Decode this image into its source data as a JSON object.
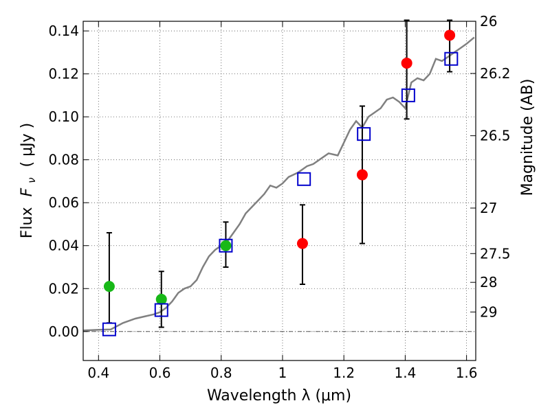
{
  "chart_data": {
    "type": "scatter",
    "xlabel": "Wavelength  λ (μm)",
    "ylabel_text": "Flux",
    "ylabel_math": "F",
    "ylabel_sub": "ν",
    "ylabel_unit": "( μJy )",
    "y2label": "Magnitude (AB)",
    "xlim": [
      0.35,
      1.63
    ],
    "ylim": [
      -0.0135,
      0.1445
    ],
    "grid": true,
    "x_ticks": [
      {
        "value": 0.4,
        "label": "0.4"
      },
      {
        "value": 0.6,
        "label": "0.6"
      },
      {
        "value": 0.8,
        "label": "0.8"
      },
      {
        "value": 1.0,
        "label": "1"
      },
      {
        "value": 1.2,
        "label": "1.2"
      },
      {
        "value": 1.4,
        "label": "1.4"
      },
      {
        "value": 1.6,
        "label": "1.6"
      }
    ],
    "y_ticks": [
      {
        "value": 0.0,
        "label": "0.00"
      },
      {
        "value": 0.02,
        "label": "0.02"
      },
      {
        "value": 0.04,
        "label": "0.04"
      },
      {
        "value": 0.06,
        "label": "0.06"
      },
      {
        "value": 0.08,
        "label": "0.08"
      },
      {
        "value": 0.1,
        "label": "0.10"
      },
      {
        "value": 0.12,
        "label": "0.12"
      },
      {
        "value": 0.14,
        "label": "0.14"
      }
    ],
    "y2_ticks": [
      {
        "flux": 0.1445,
        "label": "26"
      },
      {
        "flux": 0.1202,
        "label": "26.2"
      },
      {
        "flux": 0.0912,
        "label": "26.5"
      },
      {
        "flux": 0.0575,
        "label": "27"
      },
      {
        "flux": 0.0363,
        "label": "27.5"
      },
      {
        "flux": 0.0229,
        "label": "28"
      },
      {
        "flux": 0.0091,
        "label": "29"
      }
    ],
    "spectrum": {
      "color": "#808080",
      "x": [
        0.35,
        0.4,
        0.44,
        0.48,
        0.52,
        0.55,
        0.58,
        0.6,
        0.62,
        0.64,
        0.66,
        0.68,
        0.7,
        0.72,
        0.74,
        0.76,
        0.78,
        0.8,
        0.82,
        0.84,
        0.86,
        0.88,
        0.9,
        0.92,
        0.94,
        0.96,
        0.98,
        1.0,
        1.02,
        1.05,
        1.08,
        1.1,
        1.12,
        1.15,
        1.18,
        1.2,
        1.22,
        1.24,
        1.26,
        1.28,
        1.3,
        1.32,
        1.34,
        1.36,
        1.38,
        1.4,
        1.42,
        1.44,
        1.46,
        1.48,
        1.5,
        1.52,
        1.54,
        1.56,
        1.58,
        1.6,
        1.625
      ],
      "y": [
        0.0005,
        0.0008,
        0.001,
        0.004,
        0.006,
        0.007,
        0.008,
        0.009,
        0.011,
        0.014,
        0.018,
        0.02,
        0.021,
        0.024,
        0.03,
        0.035,
        0.038,
        0.04,
        0.042,
        0.046,
        0.05,
        0.055,
        0.058,
        0.061,
        0.064,
        0.068,
        0.067,
        0.069,
        0.072,
        0.074,
        0.077,
        0.078,
        0.08,
        0.083,
        0.082,
        0.088,
        0.094,
        0.098,
        0.095,
        0.1,
        0.102,
        0.104,
        0.108,
        0.109,
        0.107,
        0.104,
        0.116,
        0.118,
        0.117,
        0.12,
        0.127,
        0.126,
        0.128,
        0.13,
        0.132,
        0.134,
        0.137
      ]
    },
    "model_points": {
      "color": "#0000cc",
      "marker": "square",
      "x": [
        0.435,
        0.605,
        0.815,
        1.07,
        1.265,
        1.41,
        1.55
      ],
      "y": [
        0.001,
        0.01,
        0.04,
        0.071,
        0.092,
        0.11,
        0.127
      ]
    },
    "observed_points": [
      {
        "x": 0.435,
        "y": 0.021,
        "err_low": 0.004,
        "err_high": 0.046,
        "color": "#18b818"
      },
      {
        "x": 0.605,
        "y": 0.015,
        "err_low": 0.002,
        "err_high": 0.028,
        "color": "#18b818"
      },
      {
        "x": 0.815,
        "y": 0.04,
        "err_low": 0.03,
        "err_high": 0.051,
        "color": "#18b818"
      },
      {
        "x": 1.065,
        "y": 0.041,
        "err_low": 0.022,
        "err_high": 0.059,
        "color": "#ff0000"
      },
      {
        "x": 1.26,
        "y": 0.073,
        "err_low": 0.041,
        "err_high": 0.105,
        "color": "#ff0000"
      },
      {
        "x": 1.405,
        "y": 0.125,
        "err_low": 0.099,
        "err_high": 0.145,
        "color": "#ff0000"
      },
      {
        "x": 1.545,
        "y": 0.138,
        "err_low": 0.121,
        "err_high": 0.145,
        "color": "#ff0000"
      }
    ]
  }
}
